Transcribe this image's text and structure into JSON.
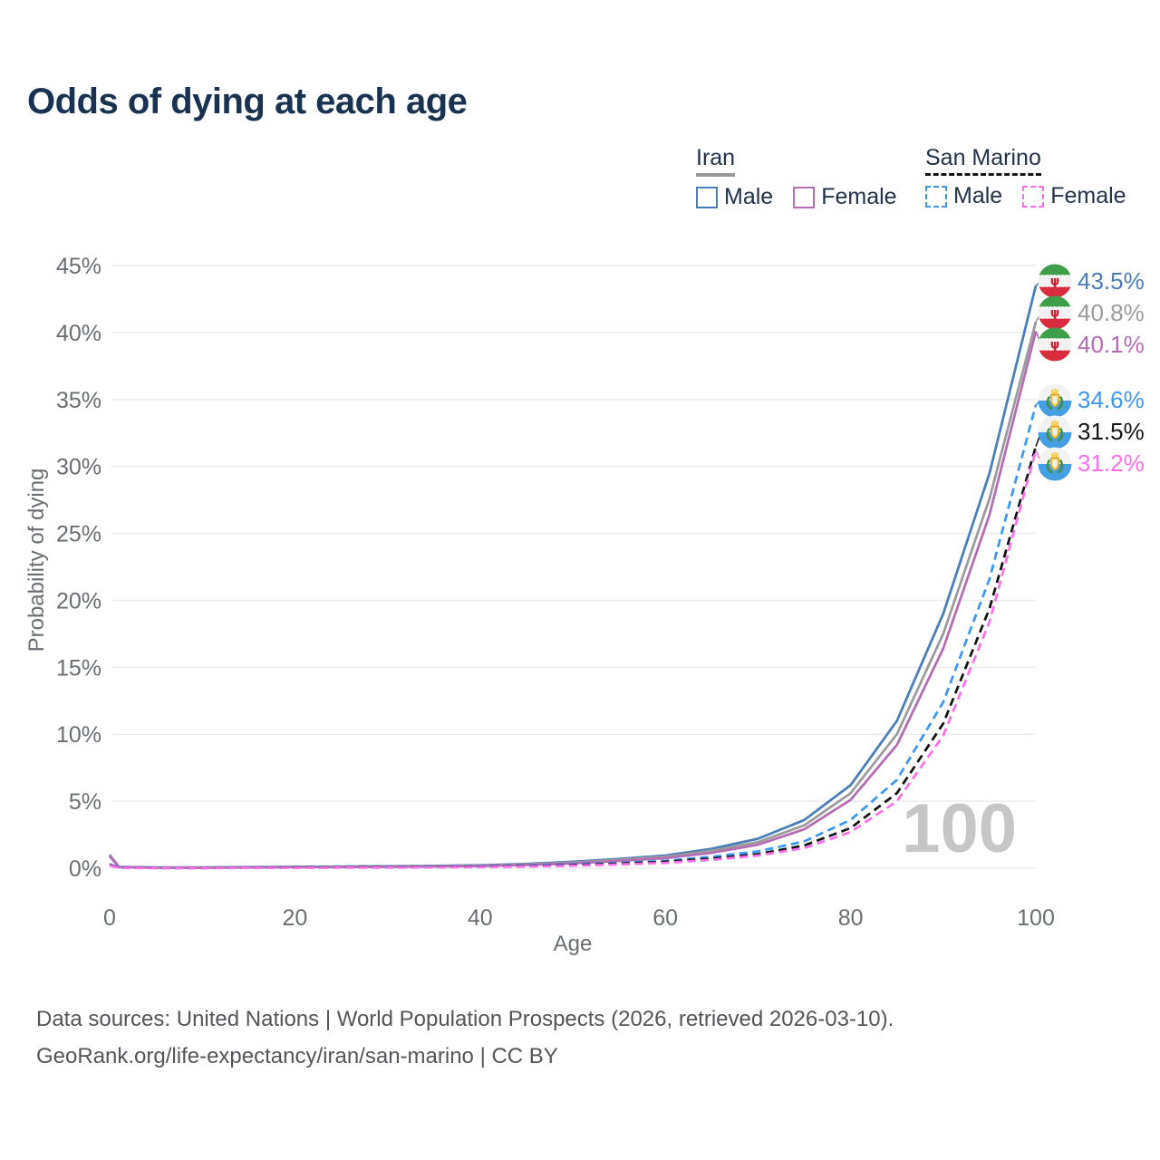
{
  "title": "Odds of dying at each age",
  "legend": {
    "groups": [
      {
        "name": "Iran",
        "underline_style": "solid",
        "underline_color": "#999999",
        "items": [
          {
            "label": "Male",
            "color": "#4b7db8",
            "dashed": false
          },
          {
            "label": "Female",
            "color": "#b46cb4",
            "dashed": false
          }
        ]
      },
      {
        "name": "San Marino",
        "underline_style": "dashed",
        "underline_color": "#141414",
        "items": [
          {
            "label": "Male",
            "color": "#3e97f2",
            "dashed": true
          },
          {
            "label": "Female",
            "color": "#fb70ea",
            "dashed": true
          }
        ]
      }
    ]
  },
  "chart_data": {
    "type": "line",
    "title": "Odds of dying at each age",
    "xlabel": "Age",
    "ylabel": "Probability of dying",
    "xlim": [
      0,
      100
    ],
    "ylim": [
      0,
      45
    ],
    "x_ticks": [
      0,
      20,
      40,
      60,
      80,
      100
    ],
    "y_ticks": [
      "0%",
      "5%",
      "10%",
      "15%",
      "20%",
      "25%",
      "30%",
      "35%",
      "40%",
      "45%"
    ],
    "grid": "horizontal",
    "legend_position": "top-right",
    "watermark": "100",
    "x": [
      0,
      1,
      5,
      10,
      15,
      20,
      25,
      30,
      35,
      40,
      45,
      50,
      55,
      60,
      65,
      70,
      75,
      80,
      85,
      90,
      95,
      100
    ],
    "series": [
      {
        "name": "Iran Male",
        "color": "#4b7db8",
        "dash": false,
        "flag": "iran",
        "end_label": "43.5%",
        "values": [
          1.0,
          0.1,
          0.05,
          0.05,
          0.08,
          0.1,
          0.12,
          0.14,
          0.17,
          0.22,
          0.32,
          0.48,
          0.7,
          0.95,
          1.45,
          2.2,
          3.6,
          6.2,
          11.0,
          19.0,
          29.5,
          43.5
        ]
      },
      {
        "name": "Iran (combined)",
        "color": "#9b9b9b",
        "dash": false,
        "flag": "iran",
        "end_label": "40.8%",
        "values": [
          0.95,
          0.09,
          0.05,
          0.05,
          0.07,
          0.09,
          0.11,
          0.12,
          0.15,
          0.19,
          0.28,
          0.42,
          0.62,
          0.85,
          1.3,
          1.95,
          3.2,
          5.6,
          10.0,
          17.5,
          27.6,
          40.8
        ]
      },
      {
        "name": "Iran Female",
        "color": "#b46cb4",
        "dash": false,
        "flag": "iran",
        "end_label": "40.1%",
        "values": [
          0.9,
          0.08,
          0.04,
          0.04,
          0.06,
          0.08,
          0.09,
          0.11,
          0.13,
          0.16,
          0.24,
          0.36,
          0.54,
          0.75,
          1.15,
          1.75,
          2.9,
          5.1,
          9.2,
          16.4,
          26.4,
          40.1
        ]
      },
      {
        "name": "San Marino Male",
        "color": "#3e97f2",
        "dash": true,
        "flag": "san-marino",
        "end_label": "34.6%",
        "values": [
          0.3,
          0.03,
          0.02,
          0.02,
          0.04,
          0.06,
          0.07,
          0.08,
          0.1,
          0.13,
          0.18,
          0.28,
          0.4,
          0.55,
          0.85,
          1.25,
          2.0,
          3.6,
          6.6,
          12.4,
          21.6,
          34.6
        ]
      },
      {
        "name": "San Marino (combined)",
        "color": "#141414",
        "dash": true,
        "flag": "san-marino",
        "end_label": "31.5%",
        "values": [
          0.25,
          0.03,
          0.02,
          0.02,
          0.03,
          0.05,
          0.06,
          0.07,
          0.08,
          0.11,
          0.15,
          0.23,
          0.34,
          0.48,
          0.72,
          1.05,
          1.7,
          3.0,
          5.6,
          10.8,
          19.4,
          31.5
        ]
      },
      {
        "name": "San Marino Female",
        "color": "#fb70ea",
        "dash": true,
        "flag": "san-marino",
        "end_label": "31.2%",
        "values": [
          0.2,
          0.02,
          0.01,
          0.01,
          0.02,
          0.03,
          0.04,
          0.05,
          0.06,
          0.08,
          0.12,
          0.18,
          0.28,
          0.4,
          0.62,
          0.95,
          1.5,
          2.7,
          5.0,
          9.9,
          18.4,
          31.2
        ]
      }
    ]
  },
  "flags": {
    "iran": {
      "green": "#3f9e49",
      "white": "#f2f2f2",
      "red": "#da2c3e",
      "emblem": "#d21f32"
    },
    "san_marino": {
      "white": "#f2f2f2",
      "blue": "#459fe3",
      "gold": "#f6cd4e",
      "green_wreath": "#3f8f3f"
    }
  },
  "footer": {
    "line1": "Data sources: United Nations | World Population Prospects (2026, retrieved 2026-03-10).",
    "line2": "GeoRank.org/life-expectancy/iran/san-marino | CC BY"
  }
}
